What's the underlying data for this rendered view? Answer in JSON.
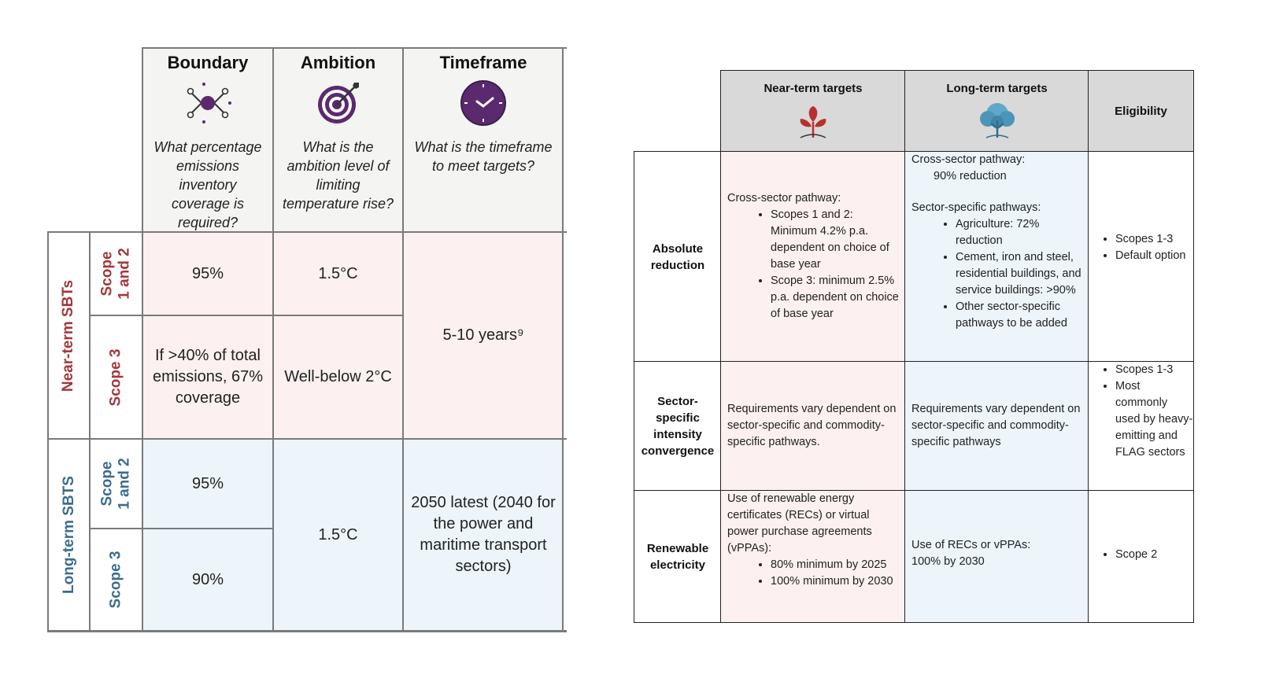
{
  "left_table": {
    "columns": [
      {
        "title": "Boundary",
        "icon": "network-nodes-icon",
        "question": "What percentage emissions inventory coverage is required?"
      },
      {
        "title": "Ambition",
        "icon": "target-icon",
        "question": "What is the ambition level of limiting temperature rise?"
      },
      {
        "title": "Timeframe",
        "icon": "clock-icon",
        "question": "What is the timeframe to meet targets?"
      }
    ],
    "groups": {
      "near": "Near-term SBTs",
      "long": "Long-term SBTS"
    },
    "scopes": {
      "s12": "Scope 1 and 2",
      "s3": "Scope 3"
    },
    "near_s12_boundary": "95%",
    "near_s12_ambition": "1.5°C",
    "near_s3_boundary": "If >40% of total emissions, 67% coverage",
    "near_s3_ambition": "Well-below 2°C",
    "near_timeframe": "5-10 years⁹",
    "long_s12_boundary": "95%",
    "long_s3_boundary": "90%",
    "long_ambition": "1.5°C",
    "long_timeframe": "2050 latest (2040 for the power and maritime transport sectors)"
  },
  "right_table": {
    "headers": {
      "near": "Near-term targets",
      "long": "Long-term targets",
      "elig": "Eligibility"
    },
    "icons": {
      "near": "sprout-icon",
      "long": "tree-icon"
    },
    "rows": [
      {
        "label": "Absolute reduction",
        "near_intro": "Cross-sector pathway:",
        "near_bullets": [
          "Scopes 1 and 2: Minimum 4.2% p.a. dependent on choice of base year",
          "Scope 3: minimum 2.5% p.a. dependent on choice of base year"
        ],
        "long_line1": "Cross-sector pathway:",
        "long_line2": "90% reduction",
        "long_intro2": "Sector-specific pathways:",
        "long_bullets": [
          "Agriculture: 72% reduction",
          "Cement, iron and steel, residential buildings, and service buildings: >90%",
          "Other sector-specific pathways to be added"
        ],
        "elig_bullets": [
          "Scopes 1-3",
          "Default option"
        ]
      },
      {
        "label": "Sector-specific intensity convergence",
        "near_text": "Requirements vary dependent on sector-specific and commodity-specific pathways.",
        "long_text": "Requirements vary dependent on sector-specific and commodity-specific pathways",
        "elig_bullets": [
          "Scopes 1-3",
          "Most commonly used by heavy-emitting and FLAG sectors"
        ]
      },
      {
        "label": "Renewable electricity",
        "near_intro": "Use of renewable energy certificates (RECs) or virtual power purchase agreements (vPPAs):",
        "near_bullets": [
          "80% minimum by 2025",
          "100% minimum by 2030"
        ],
        "long_text1": "Use of RECs or vPPAs:",
        "long_text2": "100% by 2030",
        "elig_bullets": [
          "Scope 2"
        ]
      }
    ]
  },
  "colors": {
    "near_red": "#a4373a",
    "long_blue": "#3b6b91",
    "pink_fill": "#fcf0f0",
    "blue_fill": "#edf4fa",
    "header_grey": "#d9d9d9",
    "icon_purple": "#5b2a6e"
  }
}
